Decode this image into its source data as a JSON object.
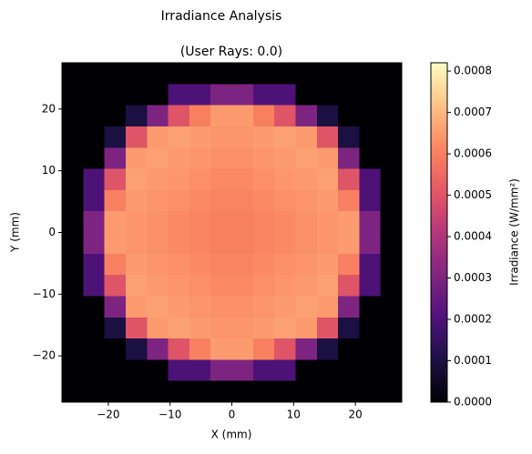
{
  "chart_data": {
    "type": "heatmap",
    "title": "Irradiance Analysis",
    "subtitle": "(User Rays: 0.0)",
    "x_label": "X (mm)",
    "y_label": "Y (mm)",
    "colorbar_label": "Irradiance (W/mm²)",
    "colormap": "magma",
    "xlim": [
      -27.5,
      27.5
    ],
    "ylim": [
      -27.5,
      27.5
    ],
    "clim": [
      0,
      0.00082
    ],
    "xticks": [
      {
        "value": -20,
        "label": "−20"
      },
      {
        "value": -10,
        "label": "−10"
      },
      0,
      10,
      20
    ],
    "yticks": [
      {
        "value": -20,
        "label": "−20"
      },
      {
        "value": -10,
        "label": "−10"
      },
      0,
      10,
      20
    ],
    "cticks": [
      {
        "value": 0,
        "label": "0.0000"
      },
      {
        "value": 0.0001,
        "label": "0.0001"
      },
      {
        "value": 0.0002,
        "label": "0.0002"
      },
      {
        "value": 0.0003,
        "label": "0.0003"
      },
      {
        "value": 0.0004,
        "label": "0.0004"
      },
      {
        "value": 0.0005,
        "label": "0.0005"
      },
      {
        "value": 0.0006,
        "label": "0.0006"
      },
      {
        "value": 0.0007,
        "label": "0.0007"
      },
      {
        "value": 0.0008,
        "label": "0.0008"
      }
    ],
    "z": [
      [
        0,
        0,
        0,
        0,
        0,
        0,
        0,
        0,
        0,
        0,
        0,
        0,
        0,
        0,
        0,
        0
      ],
      [
        0,
        0,
        0,
        0,
        0,
        0.0002,
        0.0002,
        0.0003,
        0.0003,
        0.0002,
        0.0002,
        0,
        0,
        0,
        0,
        0
      ],
      [
        0,
        0,
        0,
        0.0001,
        0.0003,
        0.0005,
        0.0006,
        0.00065,
        0.00065,
        0.0006,
        0.0005,
        0.0003,
        0.0001,
        0,
        0,
        0
      ],
      [
        0,
        0,
        0.0001,
        0.0005,
        0.00065,
        0.00066,
        0.00065,
        0.00064,
        0.00064,
        0.00065,
        0.00066,
        0.00065,
        0.0005,
        0.0001,
        0,
        0
      ],
      [
        0,
        0,
        0.0003,
        0.00065,
        0.00066,
        0.00065,
        0.00064,
        0.00063,
        0.00063,
        0.00064,
        0.00065,
        0.00066,
        0.00065,
        0.0003,
        0,
        0
      ],
      [
        0,
        0.0002,
        0.0005,
        0.00066,
        0.00065,
        0.00064,
        0.00063,
        0.00062,
        0.00062,
        0.00063,
        0.00064,
        0.00065,
        0.00066,
        0.0005,
        0.0002,
        0
      ],
      [
        0,
        0.0002,
        0.0006,
        0.00065,
        0.00064,
        0.00063,
        0.00062,
        0.00061,
        0.00061,
        0.00062,
        0.00063,
        0.00064,
        0.00065,
        0.0006,
        0.0002,
        0
      ],
      [
        0,
        0.0003,
        0.00065,
        0.00064,
        0.00063,
        0.00062,
        0.00061,
        0.0006,
        0.0006,
        0.00061,
        0.00062,
        0.00063,
        0.00064,
        0.00065,
        0.0003,
        0
      ],
      [
        0,
        0.0003,
        0.00065,
        0.00064,
        0.00063,
        0.00062,
        0.00061,
        0.0006,
        0.0006,
        0.00061,
        0.00062,
        0.00063,
        0.00064,
        0.00065,
        0.0003,
        0
      ],
      [
        0,
        0.0002,
        0.0006,
        0.00065,
        0.00064,
        0.00063,
        0.00062,
        0.00061,
        0.00061,
        0.00062,
        0.00063,
        0.00064,
        0.00065,
        0.0006,
        0.0002,
        0
      ],
      [
        0,
        0.0002,
        0.0005,
        0.00066,
        0.00065,
        0.00064,
        0.00063,
        0.00062,
        0.00062,
        0.00063,
        0.00064,
        0.00065,
        0.00066,
        0.0005,
        0.0002,
        0
      ],
      [
        0,
        0,
        0.0003,
        0.00065,
        0.00066,
        0.00065,
        0.00064,
        0.00063,
        0.00063,
        0.00064,
        0.00065,
        0.00066,
        0.00065,
        0.0003,
        0,
        0
      ],
      [
        0,
        0,
        0.0001,
        0.0005,
        0.00065,
        0.00066,
        0.00065,
        0.00064,
        0.00064,
        0.00065,
        0.00066,
        0.00065,
        0.0005,
        0.0001,
        0,
        0
      ],
      [
        0,
        0,
        0,
        0.0001,
        0.0003,
        0.0005,
        0.0006,
        0.00065,
        0.00065,
        0.0006,
        0.0005,
        0.0003,
        0.0001,
        0,
        0,
        0
      ],
      [
        0,
        0,
        0,
        0,
        0,
        0.0002,
        0.0002,
        0.0003,
        0.0003,
        0.0002,
        0.0002,
        0,
        0,
        0,
        0,
        0
      ],
      [
        0,
        0,
        0,
        0,
        0,
        0,
        0,
        0,
        0,
        0,
        0,
        0,
        0,
        0,
        0,
        0
      ]
    ]
  }
}
